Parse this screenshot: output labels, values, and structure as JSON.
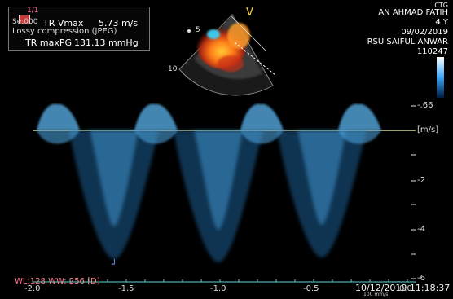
{
  "overlay": {
    "series_label": "Se:000",
    "image_label": "1/1",
    "lossy_text": "Lossy compression (JPEG)",
    "tr_vmax_label": "TR Vmax",
    "tr_vmax_value": "5.73 m/s",
    "tr_maxpg_label": "TR maxPG",
    "tr_maxpg_value": "131.13 mmHg",
    "wl_ww": "WL:128 WW: 256 [D]",
    "timestamp": "10/12/2019 11:18:37",
    "sweep": "100 mm/s"
  },
  "patient": {
    "modality": "CTG",
    "name": "AN AHMAD FATIH",
    "age": "4 Y",
    "date": "09/02/2019",
    "hospital": "RSU SAIFUL ANWAR",
    "id": "110247"
  },
  "sector": {
    "label_v": "V",
    "depth_5": "5",
    "depth_10": "10"
  },
  "velocity_axis": {
    "unit": "[m/s]",
    "ticks": [
      "-.66",
      "-2",
      "-4",
      "-6"
    ]
  },
  "time_axis": {
    "ticks": [
      "-2.0",
      "-1.5",
      "-1.0",
      "-0.5",
      "0.0"
    ]
  },
  "colorbar": {
    "top": "#ffffff",
    "mid": "#3aa0ff",
    "bottom": "#000000"
  }
}
